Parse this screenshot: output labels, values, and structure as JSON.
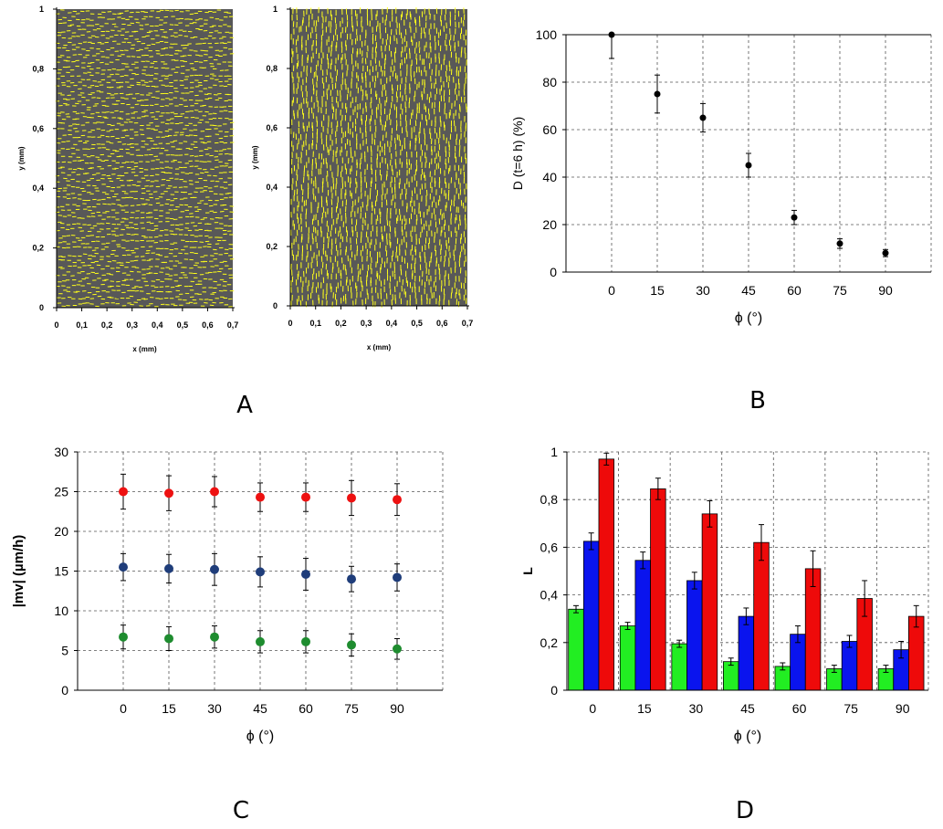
{
  "panel_labels": {
    "a": "A",
    "b": "B",
    "c": "C",
    "d": "D"
  },
  "chart_data": [
    {
      "panel": "A",
      "type": "scatter",
      "subplots": [
        {
          "xlabel": "x (mm)",
          "ylabel": "y (mm)",
          "xlim": [
            0,
            0.7
          ],
          "ylim": [
            0,
            1
          ],
          "xticks": [
            "0",
            "0,1",
            "0,2",
            "0,3",
            "0,4",
            "0,5",
            "0,6",
            "0,7"
          ],
          "yticks": [
            "0",
            "0,2",
            "0,4",
            "0,6",
            "0,8",
            "1"
          ],
          "background": "#585858",
          "mark_color": "#ffff1a",
          "mark_orientation": "horizontal"
        },
        {
          "xlabel": "x (mm)",
          "ylabel": "y (mm)",
          "xlim": [
            0,
            0.7
          ],
          "ylim": [
            0,
            1
          ],
          "xticks": [
            "0",
            "0,1",
            "0,2",
            "0,3",
            "0,4",
            "0,5",
            "0,6",
            "0,7"
          ],
          "yticks": [
            "0",
            "0,2",
            "0,4",
            "0,6",
            "0,8",
            "1"
          ],
          "background": "#585858",
          "mark_color": "#ffff1a",
          "mark_orientation": "vertical"
        }
      ]
    },
    {
      "panel": "B",
      "type": "scatter",
      "ylabel": "D (t=6 h)    (%)",
      "xlabel": "ϕ  (°)",
      "ylim": [
        0,
        100
      ],
      "yticks": [
        "0",
        "20",
        "40",
        "60",
        "80",
        "100"
      ],
      "categories": [
        "0",
        "15",
        "30",
        "45",
        "60",
        "75",
        "90"
      ],
      "values": [
        100,
        75,
        65,
        45,
        23,
        12,
        8
      ],
      "errors": [
        10,
        8,
        6,
        5,
        3,
        2,
        1.5
      ],
      "grid": true
    },
    {
      "panel": "C",
      "type": "scatter",
      "ylabel": "|mv|  (µm/h)",
      "xlabel": "ϕ  (°)",
      "ylim": [
        0,
        30
      ],
      "yticks": [
        "0",
        "5",
        "10",
        "15",
        "20",
        "25",
        "30"
      ],
      "categories": [
        "0",
        "15",
        "30",
        "45",
        "60",
        "75",
        "90"
      ],
      "series": [
        {
          "color": "#ee1111",
          "values": [
            25,
            24.8,
            25,
            24.3,
            24.3,
            24.2,
            24
          ],
          "errors": [
            2.2,
            2.2,
            1.9,
            1.8,
            1.8,
            2.2,
            2.0
          ]
        },
        {
          "color": "#1f3d7a",
          "values": [
            15.5,
            15.3,
            15.2,
            14.9,
            14.6,
            14.0,
            14.2
          ],
          "errors": [
            1.7,
            1.8,
            2.0,
            1.9,
            2.0,
            1.6,
            1.7
          ]
        },
        {
          "color": "#1e8c2f",
          "values": [
            6.7,
            6.5,
            6.7,
            6.1,
            6.1,
            5.7,
            5.2
          ],
          "errors": [
            1.5,
            1.5,
            1.4,
            1.4,
            1.4,
            1.4,
            1.3
          ]
        }
      ],
      "grid": true
    },
    {
      "panel": "D",
      "type": "bar",
      "ylabel": "L",
      "xlabel": "ϕ  (°)",
      "ylim": [
        0,
        1
      ],
      "yticks": [
        "0",
        "0,2",
        "0,4",
        "0,6",
        "0,8",
        "1"
      ],
      "categories": [
        "0",
        "15",
        "30",
        "45",
        "60",
        "75",
        "90"
      ],
      "series": [
        {
          "color": "#22ee22",
          "values": [
            0.34,
            0.27,
            0.195,
            0.12,
            0.1,
            0.09,
            0.09
          ],
          "errors": [
            0.015,
            0.015,
            0.015,
            0.015,
            0.015,
            0.015,
            0.015
          ]
        },
        {
          "color": "#0a14ee",
          "values": [
            0.625,
            0.545,
            0.46,
            0.31,
            0.235,
            0.205,
            0.17
          ],
          "errors": [
            0.035,
            0.035,
            0.035,
            0.035,
            0.035,
            0.025,
            0.035
          ]
        },
        {
          "color": "#ee0a0a",
          "values": [
            0.97,
            0.845,
            0.74,
            0.62,
            0.51,
            0.385,
            0.31
          ],
          "errors": [
            0.025,
            0.045,
            0.055,
            0.075,
            0.075,
            0.075,
            0.045
          ]
        }
      ],
      "grid": true
    }
  ]
}
